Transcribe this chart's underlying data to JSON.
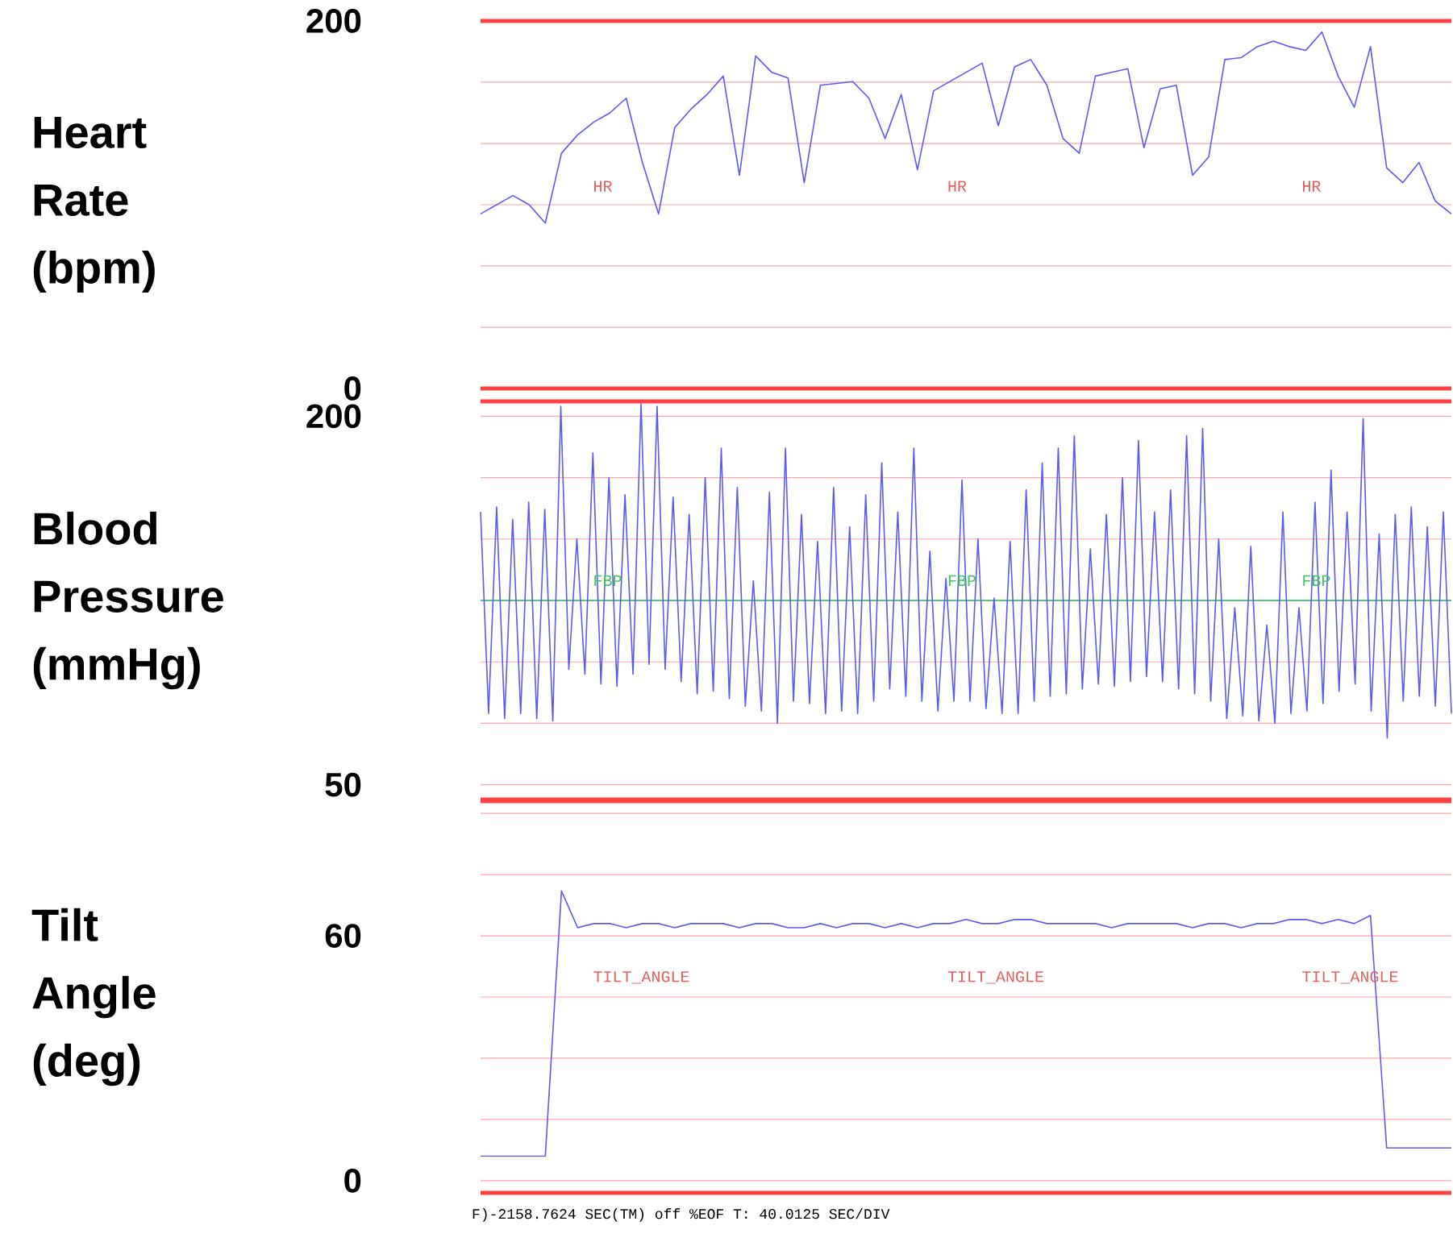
{
  "chart_data": [
    {
      "type": "line",
      "ylabel": "Heart Rate (bpm)",
      "categories": [
        null,
        null,
        null,
        null,
        null,
        null,
        null,
        null,
        null,
        null,
        null,
        null,
        null,
        null,
        null,
        null,
        null,
        null,
        null,
        null,
        null,
        null,
        null,
        null,
        null,
        null,
        null,
        null,
        null,
        null,
        null,
        null,
        null,
        null,
        null,
        null,
        null,
        null,
        null,
        null,
        null,
        null,
        null,
        null,
        null,
        null,
        null,
        null,
        null,
        null,
        null,
        null,
        null,
        null,
        null,
        null,
        null,
        null,
        null,
        null,
        null
      ],
      "series": [
        {
          "color": "#5a5af0",
          "values": [
            95,
            100,
            105,
            100,
            90,
            128,
            138,
            145,
            150,
            158,
            123,
            95,
            142,
            152,
            160,
            170,
            116,
            181,
            172,
            169,
            112,
            165,
            166,
            167,
            158,
            136,
            160,
            119,
            162,
            167,
            172,
            177,
            143,
            175,
            179,
            165,
            136,
            128,
            170,
            172,
            174,
            131,
            163,
            165,
            116,
            126,
            179,
            180,
            186,
            189,
            186,
            184,
            194,
            170,
            153,
            186,
            120,
            112,
            123,
            102,
            95
          ]
        }
      ],
      "ylim": [
        0,
        200
      ],
      "yticks": [
        0,
        {
          "value": 33.3,
          "label": null
        },
        {
          "value": 66.7,
          "label": null
        },
        {
          "value": 100,
          "label": null
        },
        {
          "value": 133.3,
          "label": null
        },
        {
          "value": 166.7,
          "label": null
        },
        200
      ],
      "grid": "y",
      "annotations": [
        "HR",
        "HR",
        "HR"
      ]
    },
    {
      "type": "line",
      "ylabel": "Blood Pressure (mmHg)",
      "categories": [
        null,
        null,
        null,
        null,
        null,
        null,
        null,
        null,
        null,
        null,
        null,
        null,
        null,
        null,
        null,
        null,
        null,
        null,
        null,
        null,
        null,
        null,
        null,
        null,
        null,
        null,
        null,
        null,
        null,
        null,
        null,
        null,
        null,
        null,
        null,
        null,
        null,
        null,
        null,
        null,
        null,
        null,
        null,
        null,
        null,
        null,
        null,
        null,
        null,
        null,
        null,
        null,
        null,
        null,
        null,
        null,
        null,
        null,
        null,
        null,
        null,
        null,
        null,
        null,
        null,
        null,
        null,
        null,
        null,
        null,
        null,
        null,
        null,
        null,
        null,
        null,
        null,
        null,
        null,
        null,
        null,
        null,
        null,
        null,
        null,
        null,
        null,
        null,
        null,
        null,
        null,
        null,
        null,
        null,
        null,
        null,
        null,
        null,
        null,
        null,
        null,
        null,
        null,
        null,
        null,
        null,
        null,
        null,
        null,
        null,
        null,
        null,
        null,
        null,
        null,
        null,
        null,
        null,
        null,
        null,
        null,
        null
      ],
      "series": [
        {
          "color": "#5a5af0",
          "values": [
            161,
            79,
            163,
            77,
            158,
            79,
            165,
            77,
            162,
            76,
            204,
            97,
            150,
            95,
            185,
            91,
            175,
            90,
            168,
            95,
            205,
            99,
            204,
            97,
            167,
            92,
            160,
            87,
            175,
            88,
            187,
            85,
            171,
            82,
            133,
            80,
            169,
            75,
            187,
            84,
            160,
            83,
            149,
            79,
            171,
            80,
            155,
            79,
            168,
            84,
            181,
            89,
            161,
            86,
            187,
            84,
            145,
            80,
            134,
            84,
            174,
            84,
            150,
            81,
            126,
            79,
            149,
            79,
            170,
            84,
            181,
            86,
            187,
            87,
            192,
            89,
            146,
            91,
            160,
            90,
            175,
            92,
            190,
            94,
            161,
            92,
            170,
            89,
            192,
            87,
            195,
            84,
            150,
            77,
            122,
            78,
            147,
            76,
            115,
            75,
            161,
            79,
            122,
            80,
            165,
            83,
            178,
            88,
            161,
            91,
            199,
            80,
            152,
            69,
            160,
            84,
            163,
            86,
            155,
            82,
            161,
            79
          ]
        }
      ],
      "ylim": [
        44,
        206
      ],
      "yticks": [
        50,
        {
          "value": 75,
          "label": null
        },
        {
          "value": 100,
          "label": null
        },
        {
          "value": 125,
          "label": null
        },
        {
          "value": 150,
          "label": null
        },
        {
          "value": 175,
          "label": null
        },
        200
      ],
      "grid": "y",
      "ref_lines": [
        {
          "axis": "y",
          "value": 125,
          "color": "#5fbf7f"
        }
      ],
      "annotations": [
        "FBP",
        "FBP",
        "FBP"
      ]
    },
    {
      "type": "line",
      "ylabel": "Tilt Angle (deg)",
      "categories": [
        null,
        null,
        null,
        null,
        null,
        null,
        null,
        null,
        null,
        null,
        null,
        null,
        null,
        null,
        null,
        null,
        null,
        null,
        null,
        null,
        null,
        null,
        null,
        null,
        null,
        null,
        null,
        null,
        null,
        null,
        null,
        null,
        null,
        null,
        null,
        null,
        null,
        null,
        null,
        null,
        null,
        null,
        null,
        null,
        null,
        null,
        null,
        null,
        null,
        null,
        null,
        null,
        null,
        null,
        null,
        null,
        null,
        null,
        null,
        null,
        null
      ],
      "series": [
        {
          "color": "#5a5af0",
          "values": [
            6,
            6,
            6,
            6,
            6,
            71,
            62,
            63,
            63,
            62,
            63,
            63,
            62,
            63,
            63,
            63,
            62,
            63,
            63,
            62,
            62,
            63,
            62,
            63,
            63,
            62,
            63,
            62,
            63,
            63,
            64,
            63,
            63,
            64,
            64,
            63,
            63,
            63,
            63,
            62,
            63,
            63,
            63,
            63,
            62,
            63,
            63,
            62,
            63,
            63,
            64,
            64,
            63,
            64,
            63,
            65,
            8,
            8,
            8,
            8,
            8
          ]
        }
      ],
      "ylim": [
        -3,
        93
      ],
      "yticks": [
        0,
        {
          "value": 15,
          "label": null
        },
        {
          "value": 30,
          "label": null
        },
        {
          "value": 45,
          "label": null
        },
        60,
        {
          "value": 75,
          "label": null
        },
        {
          "value": 90,
          "label": null
        }
      ],
      "grid": "y",
      "annotations": [
        "TILT_ANGLE",
        "TILT_ANGLE",
        "TILT_ANGLE",
        "F)-2158.7624 SEC(TM)   off %EOF T: 40.0125 SEC/DIV"
      ]
    }
  ]
}
